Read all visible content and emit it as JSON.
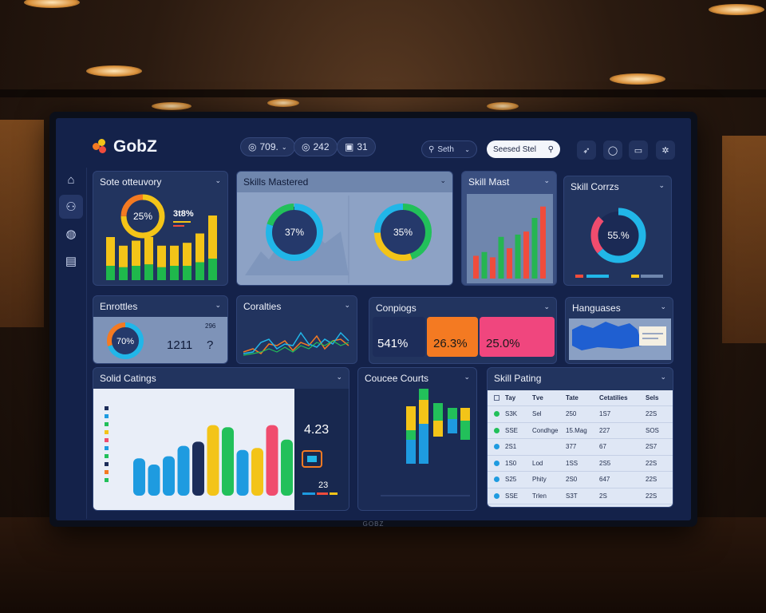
{
  "app": {
    "name": "GobZ",
    "monitor_brand": "GOBZ"
  },
  "header": {
    "pills": [
      {
        "label": "709.",
        "icon": "coin-icon"
      },
      {
        "label": "242",
        "icon": "coin-icon"
      },
      {
        "label": "31",
        "icon": "card-icon"
      }
    ],
    "search_label": "Seth",
    "search_box_label": "Seesed Stel",
    "icons": [
      "bolt-icon",
      "circle-icon",
      "folder-icon",
      "settings-icon"
    ]
  },
  "sidebar": {
    "items": [
      "home-icon",
      "users-icon",
      "globe-icon",
      "document-icon"
    ]
  },
  "panels": {
    "skill_overview": {
      "title": "Sote otteuvory",
      "donut_label": "25%",
      "stat": "3t8%"
    },
    "skills_mastered": {
      "title": "Skills Mastered",
      "donut1": "37%",
      "donut2": "35%"
    },
    "skill_most": {
      "title": "Skill Mast"
    },
    "skill_courses": {
      "title": "Skill Corrzs",
      "donut": "55.%"
    },
    "enrollments": {
      "title": "Enrottles",
      "donut": "70%",
      "value1": "1211",
      "value2": "?",
      "small": "296"
    },
    "completions": {
      "title": "Coralties"
    },
    "campaigns": {
      "title": "Conpiogs",
      "cards": [
        "541%",
        "26.3%",
        "25.0%"
      ],
      "card_colors": [
        "#1d2d5a",
        "#f47a22",
        "#f0467e"
      ]
    },
    "languages": {
      "title": "Hanguases"
    },
    "skill_ratings": {
      "title": "Solid Catings",
      "value": "4.23",
      "value2": "23"
    },
    "course_counts": {
      "title": "Coucee Courts"
    },
    "skill_rating_table": {
      "title": "Skill Pating",
      "columns": [
        "Tay",
        "Tve",
        "Tate",
        "Cetatilies",
        "Sels"
      ],
      "rows": [
        {
          "dot": "#22c05a",
          "c1": "S3K",
          "c2": "Sel",
          "c3": "250",
          "c4": "1S7",
          "c5": "22S"
        },
        {
          "dot": "#22c05a",
          "c1": "SSE",
          "c2": "Condhge",
          "c3": "15.Mag",
          "c4": "227",
          "c5": "SOS"
        },
        {
          "dot": "#1e9be0",
          "c1": "2S1",
          "c2": "",
          "c3": "377",
          "c4": "67",
          "c5": "2S7"
        },
        {
          "dot": "#1e9be0",
          "c1": "1S0",
          "c2": "Lod",
          "c3": "1SS",
          "c4": "2S5",
          "c5": "22S"
        },
        {
          "dot": "#1e9be0",
          "c1": "S25",
          "c2": "Phity",
          "c3": "2S0",
          "c4": "647",
          "c5": "22S"
        },
        {
          "dot": "#1e9be0",
          "c1": "SSE",
          "c2": "Trlen",
          "c3": "S3T",
          "c4": "2S",
          "c5": "22S"
        }
      ]
    }
  },
  "chart_data": [
    {
      "type": "bar",
      "id": "overview-bars",
      "series": [
        {
          "name": "",
          "values": [
            40,
            30,
            35,
            38,
            30,
            28,
            32,
            40,
            60
          ],
          "color": "#f3c418"
        },
        {
          "name": "",
          "values": [
            20,
            18,
            20,
            22,
            18,
            20,
            20,
            25,
            30
          ],
          "color": "#1fb84c"
        }
      ]
    },
    {
      "type": "bar",
      "id": "skill-most-bars",
      "values": [
        30,
        35,
        28,
        55,
        40,
        58,
        62,
        80,
        95
      ],
      "colors": [
        "#f04c3c",
        "#26b552",
        "#f04c3c",
        "#26b552",
        "#f04c3c",
        "#26b552",
        "#f04c3c",
        "#26b552",
        "#f04c3c"
      ]
    },
    {
      "type": "line",
      "id": "completions-lines"
    },
    {
      "type": "bar",
      "id": "ratings-bars",
      "values": [
        36,
        30,
        38,
        48,
        52,
        68,
        66,
        44,
        46,
        68,
        54
      ]
    },
    {
      "type": "bar",
      "id": "counts-bars",
      "values": [
        60,
        78,
        48,
        35,
        45
      ]
    }
  ]
}
